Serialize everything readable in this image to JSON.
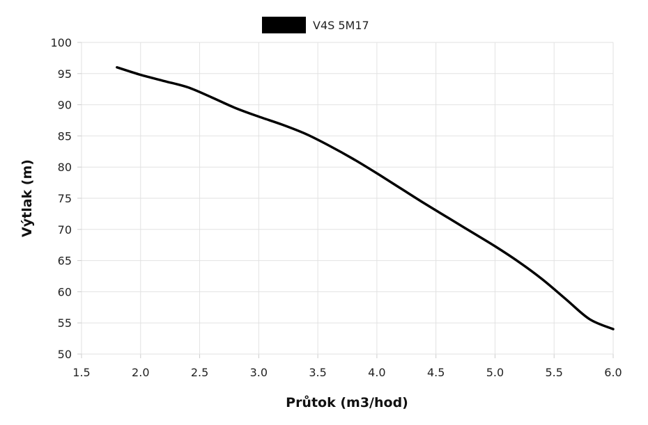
{
  "chart_data": {
    "type": "line",
    "xlabel": "Průtok (m3/hod)",
    "ylabel": "Výtlak (m)",
    "xlim": [
      1.5,
      6.0
    ],
    "ylim": [
      50,
      100
    ],
    "x_ticks": [
      "1.5",
      "2.0",
      "2.5",
      "3.0",
      "3.5",
      "4.0",
      "4.5",
      "5.0",
      "5.5",
      "6.0"
    ],
    "y_ticks": [
      "50",
      "55",
      "60",
      "65",
      "70",
      "75",
      "80",
      "85",
      "90",
      "95",
      "100"
    ],
    "grid": true,
    "legend_position": "top-center",
    "series": [
      {
        "name": "V4S 5M17",
        "color": "#000000",
        "x": [
          1.8,
          2.0,
          2.2,
          2.4,
          2.6,
          2.8,
          3.0,
          3.2,
          3.4,
          3.6,
          3.8,
          4.0,
          4.2,
          4.4,
          4.6,
          4.8,
          5.0,
          5.2,
          5.4,
          5.6,
          5.8,
          6.0
        ],
        "y": [
          96.0,
          94.8,
          93.8,
          92.8,
          91.2,
          89.5,
          88.1,
          86.8,
          85.3,
          83.4,
          81.3,
          79.0,
          76.6,
          74.2,
          71.9,
          69.6,
          67.3,
          64.8,
          62.0,
          58.8,
          55.6,
          54.0
        ]
      }
    ]
  }
}
